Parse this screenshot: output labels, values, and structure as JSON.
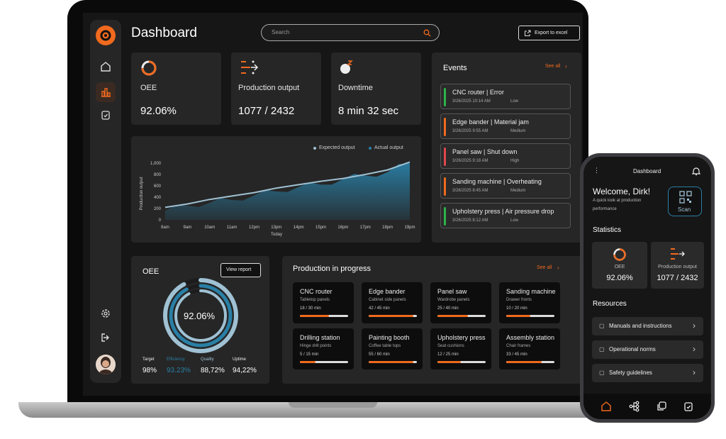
{
  "header": {
    "title": "Dashboard",
    "search_placeholder": "Search",
    "export_label": "Export to excel"
  },
  "kpis": [
    {
      "label": "OEE",
      "value": "92.06%"
    },
    {
      "label": "Production output",
      "value": "1077 / 2432"
    },
    {
      "label": "Downtime",
      "value": "8 min 32 sec"
    }
  ],
  "chart": {
    "legend_expected": "Expected output",
    "legend_actual": "Actual output",
    "ylabel": "Production output",
    "xlabel": "Today"
  },
  "chart_data": {
    "type": "area",
    "categories": [
      "8am",
      "9am",
      "10am",
      "11am",
      "12pm",
      "13pm",
      "14pm",
      "15pm",
      "16pm",
      "17pm",
      "18pm",
      "19pm"
    ],
    "yticks": [
      "1,000",
      "800",
      "600",
      "400",
      "200",
      "0"
    ],
    "ylim": [
      0,
      1000
    ],
    "series": [
      {
        "name": "Expected output",
        "values": [
          220,
          280,
          360,
          420,
          480,
          560,
          620,
          680,
          730,
          800,
          880,
          1020
        ]
      },
      {
        "name": "Actual output",
        "values": [
          160,
          250,
          300,
          350,
          430,
          500,
          580,
          620,
          720,
          780,
          840,
          1000
        ]
      }
    ],
    "colors": {
      "expected": "#9fc1d3",
      "actual": "#2a7fa5"
    }
  },
  "events": {
    "title": "Events",
    "see_all": "See all",
    "items": [
      {
        "title": "CNC router | Error",
        "date": "3/26/2025 10:14 AM",
        "priority": "Low",
        "color": "#2db34a"
      },
      {
        "title": "Edge bander | Material jam",
        "date": "3/26/2025 9:55 AM",
        "priority": "Medium",
        "color": "#f06a1e"
      },
      {
        "title": "Panel saw | Shut down",
        "date": "3/26/2025 9:18 AM",
        "priority": "High",
        "color": "#e0474c"
      },
      {
        "title": "Sanding machine | Overheating",
        "date": "3/26/2025 8:45 AM",
        "priority": "Medium",
        "color": "#f06a1e"
      },
      {
        "title": "Upholstery press | Air pressure drop",
        "date": "3/26/2025 8:12 AM",
        "priority": "Low",
        "color": "#2db34a"
      }
    ]
  },
  "oee": {
    "title": "OEE",
    "view_report": "View report",
    "center": "92.06%",
    "fraction": 0.9206,
    "stats": [
      {
        "label": "Target",
        "value": "98%"
      },
      {
        "label": "Efficiency",
        "value": "93.23%"
      },
      {
        "label": "Quality",
        "value": "88,72%"
      },
      {
        "label": "Uptime",
        "value": "94,22%"
      }
    ]
  },
  "production": {
    "title": "Production in progress",
    "see_all": "See all",
    "items": [
      {
        "name": "CNC router",
        "sub": "Tabletop panels",
        "meta": "18 / 30 min",
        "progress": 0.6
      },
      {
        "name": "Edge bander",
        "sub": "Cabinet side panels",
        "meta": "42 / 45 min",
        "progress": 0.93
      },
      {
        "name": "Panel saw",
        "sub": "Wardrobe panels",
        "meta": "25 / 40 min",
        "progress": 0.63
      },
      {
        "name": "Sanding machine",
        "sub": "Drawer fronts",
        "meta": "10 / 20 min",
        "progress": 0.5
      },
      {
        "name": "Drilling station",
        "sub": "Hinge drill points",
        "meta": "5 / 15 min",
        "progress": 0.33
      },
      {
        "name": "Painting booth",
        "sub": "Coffee table tops",
        "meta": "55 / 60 min",
        "progress": 0.92
      },
      {
        "name": "Upholstery press",
        "sub": "Seat cushions",
        "meta": "12 / 25 min",
        "progress": 0.48
      },
      {
        "name": "Assembly station",
        "sub": "Chair frames",
        "meta": "33 / 45 min",
        "progress": 0.73
      }
    ]
  },
  "phone": {
    "title": "Dashboard",
    "welcome": "Welcome, Dirk!",
    "subtitle_1": "A quick look at production",
    "subtitle_2": "performance",
    "scan": "Scan",
    "statistics": "Statistics",
    "oee_label": "OEE",
    "oee_value": "92.06%",
    "output_label": "Production output",
    "output_value": "1077 / 2432",
    "resources": "Resources",
    "resource_items": [
      "Manuals and instructions",
      "Operational norms",
      "Safety guidelines"
    ]
  },
  "accent": "#f06a1e"
}
